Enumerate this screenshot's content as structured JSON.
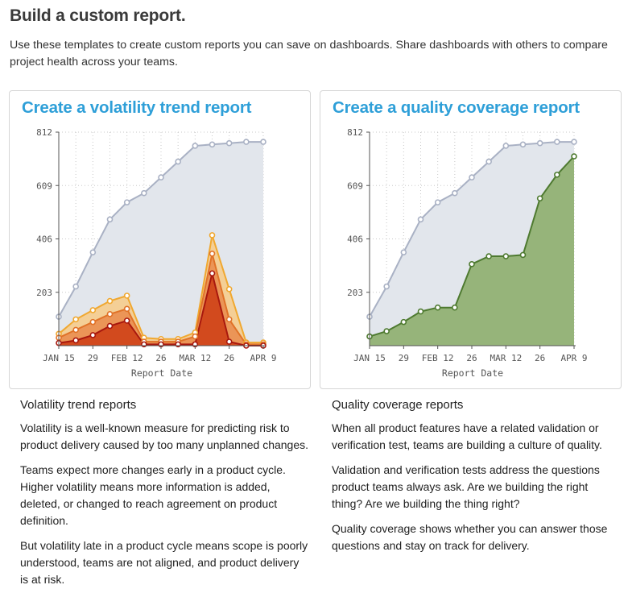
{
  "page": {
    "title": "Build a custom report.",
    "intro": "Use these templates to create custom reports you can save on dashboards. Share dashboards with others to compare project health across your teams."
  },
  "volatility_card": {
    "title": "Create a volatility trend report"
  },
  "quality_card": {
    "title": "Create a quality coverage report"
  },
  "volatility_desc": {
    "heading": "Volatility trend reports",
    "p1": "Volatility is a well-known measure for predicting risk to product delivery caused by too many unplanned changes.",
    "p2": "Teams expect more changes early in a product cycle. Higher volatility means more information is added, deleted, or changed to reach agreement on product definition.",
    "p3": "But volatility late in a product cycle means scope is poorly understood, teams are not aligned, and product delivery is at risk."
  },
  "quality_desc": {
    "heading": "Quality coverage reports",
    "p1": "When all product features have a related validation or verification test, teams are building a culture of quality.",
    "p2": "Validation and verification tests address the questions product teams always ask. Are we building the right thing? Are we building the thing right?",
    "p3": "Quality coverage shows whether you can answer those questions and stay on track for delivery."
  },
  "colors": {
    "total_fill": "#e2e6ec",
    "total_line": "#a9b1c4",
    "vol_light_fill": "#f4cf96",
    "vol_light_line": "#f0a830",
    "vol_mid_fill": "#eb9557",
    "vol_mid_line": "#e07228",
    "vol_dark_fill": "#d24a1e",
    "vol_dark_line": "#a8180e",
    "quality_fill": "#96b47a",
    "quality_line": "#4e7a30",
    "title_blue": "#2e9fd8",
    "axis": "#555555"
  },
  "chart_data": [
    {
      "type": "area",
      "xlabel": "Report Date",
      "ylabel": "",
      "ylim": [
        0,
        812
      ],
      "yticks": [
        "203",
        "406",
        "609",
        "812"
      ],
      "xticks": [
        "JAN 15",
        "29",
        "FEB 12",
        "26",
        "MAR 12",
        "26",
        "APR 9"
      ],
      "grid": true,
      "series": [
        {
          "values": [
            110,
            225,
            355,
            480,
            545,
            580,
            640,
            700,
            760,
            765,
            770,
            775,
            775
          ]
        },
        {
          "values": [
            45,
            100,
            135,
            170,
            190,
            30,
            25,
            25,
            50,
            420,
            215,
            12,
            12
          ]
        },
        {
          "values": [
            30,
            60,
            90,
            120,
            140,
            15,
            15,
            15,
            35,
            350,
            100,
            5,
            5
          ]
        },
        {
          "values": [
            10,
            20,
            40,
            75,
            95,
            5,
            5,
            5,
            5,
            275,
            15,
            0,
            0
          ]
        }
      ]
    },
    {
      "type": "area",
      "xlabel": "Report Date",
      "ylabel": "",
      "ylim": [
        0,
        812
      ],
      "yticks": [
        "203",
        "406",
        "609",
        "812"
      ],
      "xticks": [
        "JAN 15",
        "29",
        "FEB 12",
        "26",
        "MAR 12",
        "26",
        "APR 9"
      ],
      "grid": true,
      "series": [
        {
          "values": [
            110,
            225,
            355,
            480,
            545,
            580,
            640,
            700,
            760,
            765,
            770,
            775,
            775
          ]
        },
        {
          "values": [
            35,
            55,
            90,
            130,
            145,
            145,
            310,
            340,
            340,
            345,
            560,
            650,
            720
          ]
        }
      ]
    }
  ]
}
